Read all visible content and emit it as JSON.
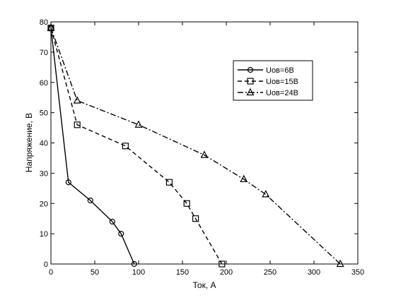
{
  "chart_data": {
    "type": "line",
    "xlabel": "Ток, А",
    "ylabel": "Напряжение, В",
    "xlim": [
      0,
      350
    ],
    "ylim": [
      0,
      80
    ],
    "xticks": [
      0,
      50,
      100,
      150,
      200,
      250,
      300,
      350
    ],
    "yticks": [
      0,
      10,
      20,
      30,
      40,
      50,
      60,
      70,
      80
    ],
    "grid": false,
    "legend_position": "top-right",
    "series": [
      {
        "name": "Uов=6В",
        "line_style": "solid",
        "marker": "circle",
        "color": "#000000",
        "x": [
          0,
          20,
          45,
          70,
          80,
          95
        ],
        "y": [
          78,
          27,
          21,
          14,
          10,
          0
        ]
      },
      {
        "name": "Uов=15В",
        "line_style": "dashed",
        "marker": "square",
        "color": "#000000",
        "x": [
          0,
          30,
          85,
          135,
          155,
          165,
          195
        ],
        "y": [
          78,
          46,
          39,
          27,
          20,
          15,
          0
        ]
      },
      {
        "name": "Uов=24В",
        "line_style": "dash-dot",
        "marker": "triangle",
        "color": "#000000",
        "x": [
          0,
          30,
          100,
          175,
          220,
          245,
          330
        ],
        "y": [
          78,
          54,
          46,
          36,
          28,
          23,
          0
        ]
      }
    ]
  }
}
